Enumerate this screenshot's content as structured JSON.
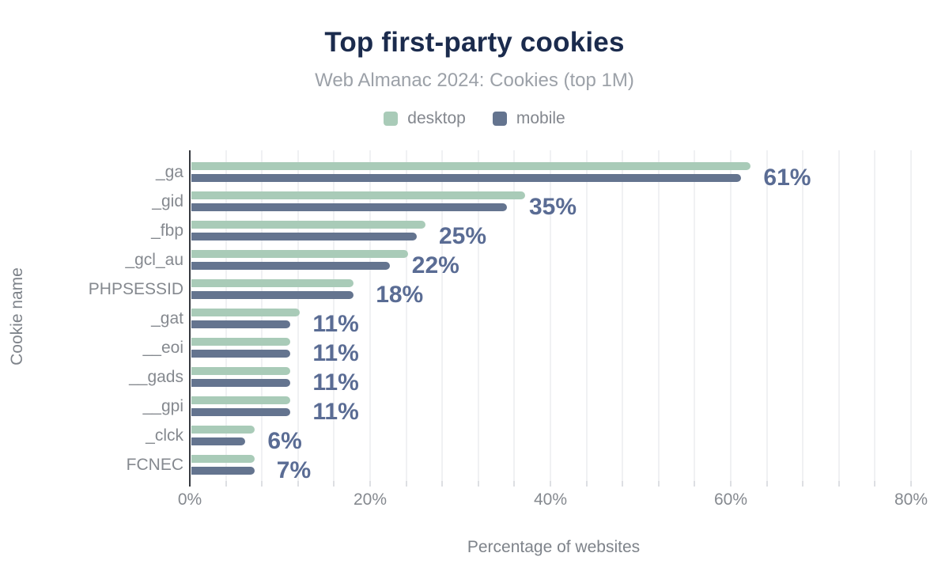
{
  "title": "Top first-party cookies",
  "subtitle": "Web Almanac 2024: Cookies (top 1M)",
  "legend": {
    "items": [
      {
        "label": "desktop",
        "color": "#A9CBB8"
      },
      {
        "label": "mobile",
        "color": "#64748F"
      }
    ]
  },
  "colors": {
    "title": "#1B2B4D",
    "subtitle": "#9CA1A8",
    "desktop_bar": "#A9CBB8",
    "mobile_bar": "#64748F",
    "value_label": "#5A6C94",
    "axis_line": "#36393F",
    "gridline": "#F0F1F3",
    "tick_text": "#85898F"
  },
  "chart_data": {
    "type": "bar",
    "orientation": "horizontal",
    "title": "Top first-party cookies",
    "subtitle": "Web Almanac 2024: Cookies (top 1M)",
    "xlabel": "Percentage of websites",
    "ylabel": "Cookie name",
    "categories": [
      "_ga",
      "_gid",
      "_fbp",
      "_gcl_au",
      "PHPSESSID",
      "_gat",
      "__eoi",
      "__gads",
      "__gpi",
      "_clck",
      "FCNEC"
    ],
    "series": [
      {
        "name": "desktop",
        "color": "#A9CBB8",
        "values": [
          62,
          37,
          26,
          24,
          18,
          12,
          11,
          11,
          11,
          7,
          7
        ]
      },
      {
        "name": "mobile",
        "color": "#64748F",
        "values": [
          61,
          35,
          25,
          22,
          18,
          11,
          11,
          11,
          11,
          6,
          7
        ]
      }
    ],
    "data_labels": [
      "61%",
      "35%",
      "25%",
      "22%",
      "18%",
      "11%",
      "11%",
      "11%",
      "11%",
      "6%",
      "7%"
    ],
    "data_labels_series": "mobile",
    "x_ticks": [
      {
        "value": 0,
        "label": "0%"
      },
      {
        "value": 20,
        "label": "20%"
      },
      {
        "value": 40,
        "label": "40%"
      },
      {
        "value": 60,
        "label": "60%"
      },
      {
        "value": 80,
        "label": "80%"
      }
    ],
    "xlim": [
      0,
      80.7
    ],
    "gridline_step_pct": 4,
    "grid": "vertical-only",
    "legend_position": "top"
  }
}
